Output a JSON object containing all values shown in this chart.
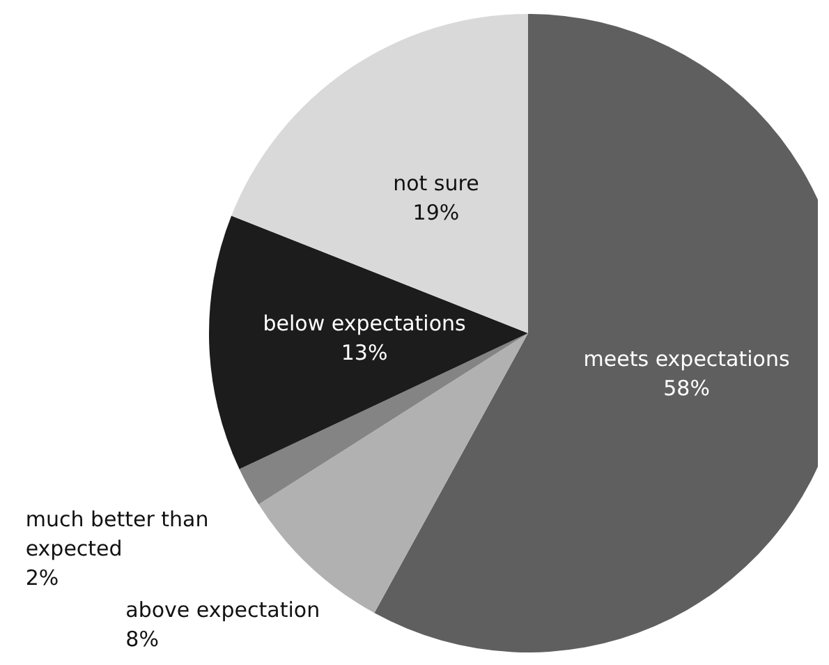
{
  "chart_data": {
    "type": "pie",
    "categories": [
      "meets expectations",
      "above expectation",
      "much better than expected",
      "below expectations",
      "not sure"
    ],
    "values": [
      58,
      8,
      2,
      13,
      19
    ],
    "value_labels": [
      "58%",
      "8%",
      "2%",
      "13%",
      "19%"
    ],
    "colors": [
      "#5f5f5f",
      "#b1b1b1",
      "#848484",
      "#1c1c1c",
      "#d9d9d9"
    ],
    "legend": false
  }
}
